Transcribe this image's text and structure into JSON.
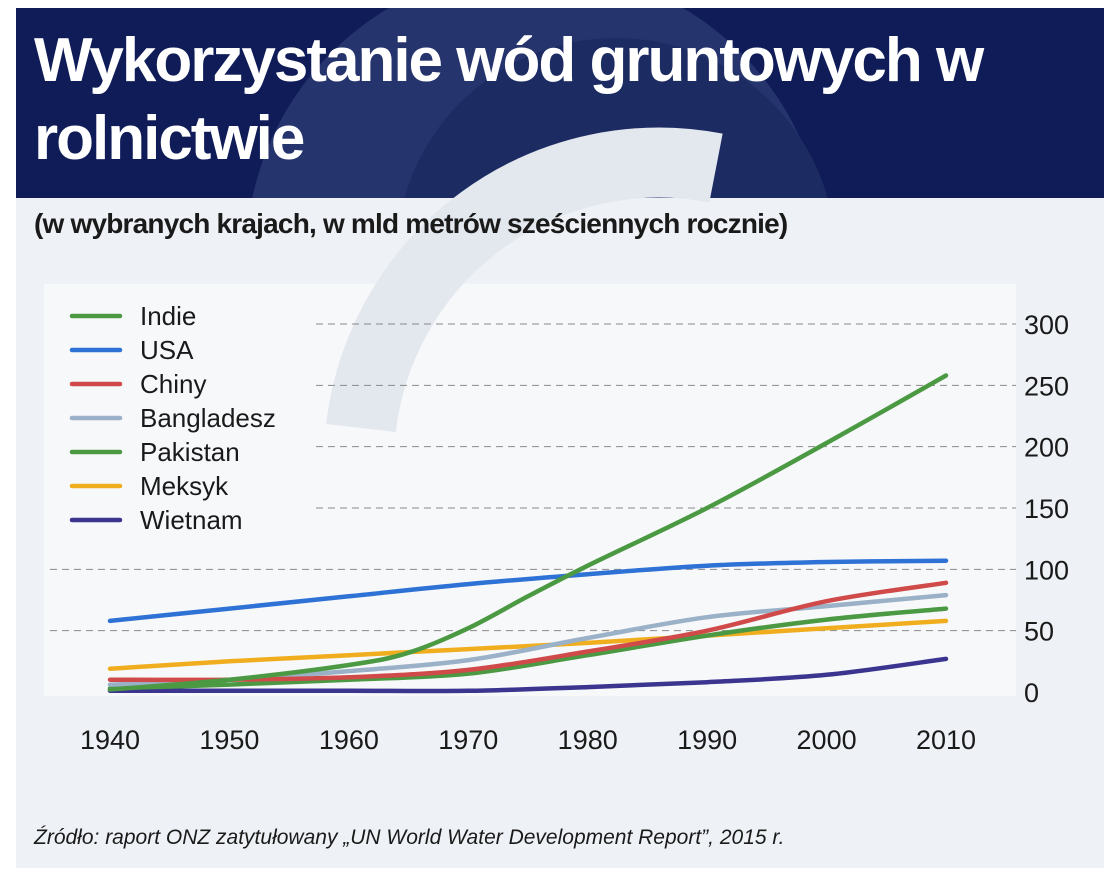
{
  "colors": {
    "header_bg": "#0f1c58",
    "panel_bg": "#eef1f5",
    "plot_bg": "#f7f8fa",
    "grid": "#8a8a8a"
  },
  "header": {
    "title": "Wykorzystanie wód gruntowych w rolnictwie",
    "subtitle": "(w wybranych krajach, w mld metrów sześciennych rocznie)"
  },
  "footer": {
    "source": "Źródło: raport ONZ zatytułowany „UN World Water Development Report”, 2015 r."
  },
  "chart_data": {
    "type": "line",
    "title": "Wykorzystanie wód gruntowych w rolnictwie",
    "subtitle": "(w wybranych krajach, w mld metrów sześciennych rocznie)",
    "xlabel": "",
    "ylabel": "",
    "x_ticks": [
      1940,
      1950,
      1960,
      1970,
      1980,
      1990,
      2000,
      2010
    ],
    "y_ticks": [
      0,
      50,
      100,
      150,
      200,
      250,
      300
    ],
    "xlim": [
      1940,
      2010
    ],
    "ylim": [
      0,
      300
    ],
    "y_axis_position": "right",
    "grid": "horizontal dashed",
    "legend_position": "top-left",
    "series": [
      {
        "name": "Indie",
        "color": "#4b9a43",
        "points": [
          [
            1940,
            2
          ],
          [
            1950,
            10
          ],
          [
            1960,
            22
          ],
          [
            1965,
            32
          ],
          [
            1970,
            52
          ],
          [
            1975,
            78
          ],
          [
            1980,
            103
          ],
          [
            1990,
            150
          ],
          [
            2000,
            203
          ],
          [
            2010,
            258
          ]
        ]
      },
      {
        "name": "USA",
        "color": "#2f72d6",
        "points": [
          [
            1940,
            58
          ],
          [
            1950,
            68
          ],
          [
            1960,
            78
          ],
          [
            1970,
            88
          ],
          [
            1980,
            96
          ],
          [
            1990,
            103
          ],
          [
            2000,
            106
          ],
          [
            2010,
            107
          ]
        ]
      },
      {
        "name": "Chiny",
        "color": "#d04a4a",
        "points": [
          [
            1940,
            10
          ],
          [
            1950,
            10
          ],
          [
            1960,
            12
          ],
          [
            1970,
            18
          ],
          [
            1980,
            33
          ],
          [
            1990,
            50
          ],
          [
            2000,
            74
          ],
          [
            2010,
            89
          ]
        ]
      },
      {
        "name": "Bangladesz",
        "color": "#9ab1c8",
        "points": [
          [
            1940,
            6
          ],
          [
            1950,
            10
          ],
          [
            1960,
            17
          ],
          [
            1970,
            26
          ],
          [
            1980,
            44
          ],
          [
            1990,
            61
          ],
          [
            2000,
            70
          ],
          [
            2010,
            79
          ]
        ]
      },
      {
        "name": "Pakistan",
        "color": "#4b9a43",
        "points": [
          [
            1940,
            3
          ],
          [
            1950,
            6
          ],
          [
            1960,
            10
          ],
          [
            1970,
            15
          ],
          [
            1980,
            30
          ],
          [
            1990,
            46
          ],
          [
            2000,
            59
          ],
          [
            2010,
            68
          ]
        ]
      },
      {
        "name": "Meksyk",
        "color": "#f0ae1f",
        "points": [
          [
            1940,
            19
          ],
          [
            1950,
            25
          ],
          [
            1960,
            30
          ],
          [
            1970,
            35
          ],
          [
            1980,
            40
          ],
          [
            1990,
            46
          ],
          [
            2000,
            52
          ],
          [
            2010,
            58
          ]
        ]
      },
      {
        "name": "Wietnam",
        "color": "#3b3590",
        "points": [
          [
            1940,
            1
          ],
          [
            1950,
            1
          ],
          [
            1960,
            1
          ],
          [
            1970,
            1
          ],
          [
            1980,
            4
          ],
          [
            1990,
            8
          ],
          [
            2000,
            14
          ],
          [
            2010,
            27
          ]
        ]
      }
    ]
  }
}
